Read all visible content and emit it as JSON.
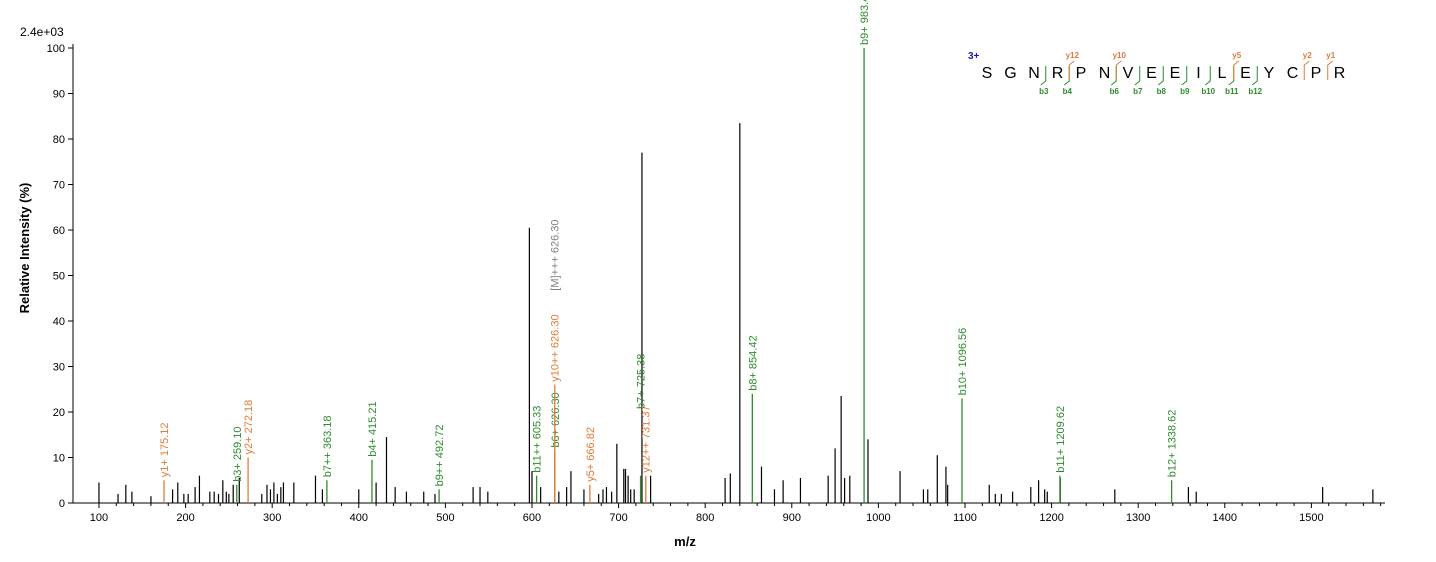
{
  "chart_data": {
    "type": "bar",
    "xlabel": "m/z",
    "ylabel": "Relative  Intensity (%)",
    "max_intensity_label": "2.4e+03",
    "xlim": [
      70,
      1585
    ],
    "ylim": [
      0,
      100
    ],
    "x_ticks": [
      100,
      200,
      300,
      400,
      500,
      600,
      700,
      800,
      900,
      1000,
      1100,
      1200,
      1300,
      1400,
      1500
    ],
    "y_ticks": [
      0,
      10,
      20,
      30,
      40,
      50,
      60,
      70,
      80,
      90,
      100
    ],
    "colors": {
      "b_ion": "#2e8b2e",
      "y_ion": "#e07b39",
      "precursor": "#808080",
      "unassigned": "#000000",
      "charge": "#1a1aa6"
    },
    "labeled_peaks": [
      {
        "mz": 175.12,
        "intensity": 5,
        "label": "y1+ 175.12",
        "ion": "y"
      },
      {
        "mz": 259.1,
        "intensity": 4,
        "label": "b3+ 259.10",
        "ion": "b"
      },
      {
        "mz": 272.18,
        "intensity": 10,
        "label": "y2+ 272.18",
        "ion": "y"
      },
      {
        "mz": 363.18,
        "intensity": 5,
        "label": "b7++ 363.18",
        "ion": "b"
      },
      {
        "mz": 415.21,
        "intensity": 9.5,
        "label": "b4+ 415.21",
        "ion": "b"
      },
      {
        "mz": 492.72,
        "intensity": 3,
        "label": "b9++ 492.72",
        "ion": "b"
      },
      {
        "mz": 605.33,
        "intensity": 6,
        "label": "b11++ 605.33",
        "ion": "b"
      },
      {
        "mz": 626.3,
        "intensity": 11.5,
        "label": "b6+ 626.30",
        "ion": "b"
      },
      {
        "mz": 626.3,
        "intensity": 26,
        "label": "y10++ 626.30",
        "ion": "y",
        "label_offset": 26
      },
      {
        "mz": 626.3,
        "intensity": 45,
        "label": "[M]+++ 626.30",
        "ion": "precursor",
        "label_offset": 46
      },
      {
        "mz": 666.82,
        "intensity": 4,
        "label": "y5+ 666.82",
        "ion": "y"
      },
      {
        "mz": 725.38,
        "intensity": 6,
        "label": "b7+ 725.38",
        "ion": "b",
        "label_offset": 20
      },
      {
        "mz": 731.37,
        "intensity": 6,
        "label": "y12++ 731.37",
        "ion": "y"
      },
      {
        "mz": 854.42,
        "intensity": 24,
        "label": "b8+ 854.42",
        "ion": "b"
      },
      {
        "mz": 983.47,
        "intensity": 100,
        "label": "b9+ 983.47",
        "ion": "b"
      },
      {
        "mz": 1096.56,
        "intensity": 23,
        "label": "b10+ 1096.56",
        "ion": "b"
      },
      {
        "mz": 1209.62,
        "intensity": 6,
        "label": "b11+ 1209.62",
        "ion": "b"
      },
      {
        "mz": 1338.62,
        "intensity": 5,
        "label": "b12+ 1338.62",
        "ion": "b"
      }
    ],
    "unlabeled_peaks": [
      [
        100,
        4.5
      ],
      [
        122,
        2
      ],
      [
        131,
        4
      ],
      [
        138,
        2.5
      ],
      [
        160,
        1.5
      ],
      [
        185,
        3
      ],
      [
        191,
        4.5
      ],
      [
        198,
        2
      ],
      [
        203,
        2
      ],
      [
        211,
        3.5
      ],
      [
        216,
        6
      ],
      [
        228,
        2.5
      ],
      [
        233,
        2.5
      ],
      [
        238,
        2
      ],
      [
        243,
        5
      ],
      [
        247,
        2.5
      ],
      [
        250,
        2
      ],
      [
        255,
        4
      ],
      [
        262,
        5.5
      ],
      [
        288,
        2
      ],
      [
        294,
        4
      ],
      [
        298,
        3
      ],
      [
        302,
        4.5
      ],
      [
        306,
        2
      ],
      [
        310,
        3.5
      ],
      [
        313,
        4.5
      ],
      [
        325,
        4.5
      ],
      [
        350,
        6
      ],
      [
        358,
        3
      ],
      [
        400,
        3
      ],
      [
        420,
        4.5
      ],
      [
        432,
        14.5
      ],
      [
        442,
        3.5
      ],
      [
        455,
        2.5
      ],
      [
        475,
        2.5
      ],
      [
        488,
        2
      ],
      [
        532,
        3.5
      ],
      [
        540,
        3.5
      ],
      [
        549,
        2.5
      ],
      [
        597,
        60.5
      ],
      [
        600,
        7
      ],
      [
        610,
        3.5
      ],
      [
        631,
        2.5
      ],
      [
        640,
        3.5
      ],
      [
        645,
        7
      ],
      [
        660,
        3
      ],
      [
        677,
        2
      ],
      [
        682,
        3
      ],
      [
        686,
        3.5
      ],
      [
        692,
        2.5
      ],
      [
        698,
        13
      ],
      [
        706,
        7.5
      ],
      [
        708,
        7.5
      ],
      [
        711,
        6
      ],
      [
        714,
        3
      ],
      [
        718,
        3
      ],
      [
        727,
        77
      ],
      [
        737,
        6
      ],
      [
        823,
        5.5
      ],
      [
        829,
        6.5
      ],
      [
        840,
        83.5
      ],
      [
        865,
        8
      ],
      [
        880,
        3
      ],
      [
        890,
        5
      ],
      [
        910,
        5.5
      ],
      [
        942,
        6
      ],
      [
        950,
        12
      ],
      [
        957,
        23.5
      ],
      [
        961,
        5.5
      ],
      [
        967,
        6
      ],
      [
        988,
        14
      ],
      [
        1025,
        7
      ],
      [
        1052,
        3
      ],
      [
        1057,
        3
      ],
      [
        1068,
        10.5
      ],
      [
        1078,
        8
      ],
      [
        1080,
        4
      ],
      [
        1128,
        4
      ],
      [
        1135,
        2
      ],
      [
        1142,
        2
      ],
      [
        1155,
        2.5
      ],
      [
        1176,
        3.5
      ],
      [
        1185,
        5
      ],
      [
        1192,
        3
      ],
      [
        1195,
        2.5
      ],
      [
        1210,
        5.5
      ],
      [
        1273,
        3
      ],
      [
        1358,
        3.5
      ],
      [
        1367,
        2.5
      ],
      [
        1513,
        3.5
      ],
      [
        1571,
        3
      ]
    ],
    "sequence": {
      "charge": "3+",
      "residues": [
        "S",
        "G",
        "N",
        "R",
        "P",
        "N",
        "V",
        "E",
        "E",
        "I",
        "L",
        "E",
        "Y",
        "C",
        "P",
        "R"
      ],
      "b_ions": [
        {
          "label": "b3",
          "after": 3
        },
        {
          "label": "b4",
          "after": 4
        },
        {
          "label": "b6",
          "after": 6
        },
        {
          "label": "b7",
          "after": 7
        },
        {
          "label": "b8",
          "after": 8
        },
        {
          "label": "b9",
          "after": 9
        },
        {
          "label": "b10",
          "after": 10
        },
        {
          "label": "b11",
          "after": 11
        },
        {
          "label": "b12",
          "after": 12
        }
      ],
      "y_ions": [
        {
          "label": "y12",
          "after": 4
        },
        {
          "label": "y10",
          "after": 6
        },
        {
          "label": "y5",
          "after": 11
        },
        {
          "label": "y2",
          "after": 14
        },
        {
          "label": "y1",
          "after": 15
        }
      ]
    }
  }
}
